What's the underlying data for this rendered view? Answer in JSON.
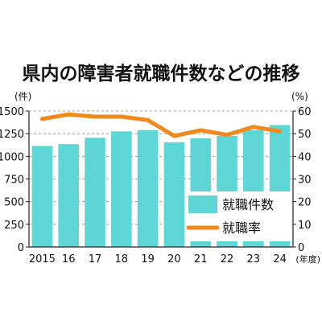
{
  "chart_data": {
    "type": "bar+line",
    "title": "県内の障害者就職件数などの推移",
    "categories": [
      "2015",
      "16",
      "17",
      "18",
      "19",
      "20",
      "21",
      "22",
      "23",
      "24"
    ],
    "x_unit": "(年度)",
    "left_axis": {
      "unit": "(件)",
      "ylim": [
        0,
        1500
      ],
      "ticks": [
        0,
        250,
        500,
        750,
        1000,
        1250,
        1500
      ]
    },
    "right_axis": {
      "unit": "(%)",
      "ylim": [
        0,
        60
      ],
      "ticks": [
        0,
        10,
        20,
        30,
        40,
        50,
        60
      ]
    },
    "grid": "horizontal dashed",
    "legend_position": "bottom-right",
    "series": [
      {
        "name": "就職件数",
        "type": "bar",
        "axis": "left",
        "color": "#5fd6d6",
        "values": [
          1115,
          1135,
          1205,
          1275,
          1290,
          1155,
          1200,
          1225,
          1290,
          1345
        ]
      },
      {
        "name": "就職率",
        "type": "line",
        "axis": "right",
        "color": "#f08a1e",
        "values": [
          56.5,
          58.5,
          57.5,
          57.5,
          56.0,
          49.0,
          51.5,
          49.5,
          53.0,
          51.0
        ]
      }
    ]
  }
}
